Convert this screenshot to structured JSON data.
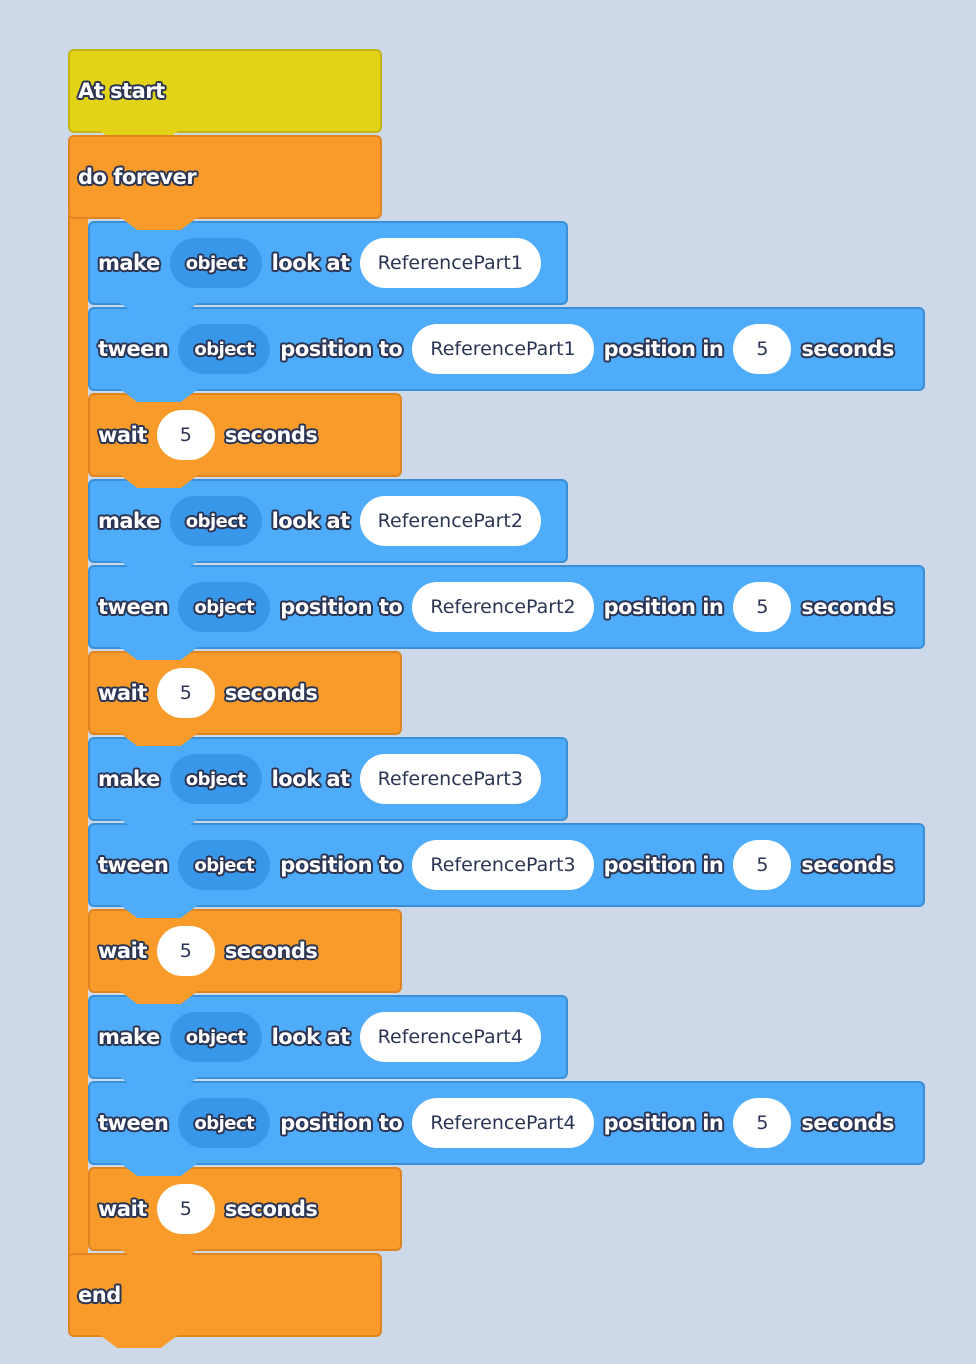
{
  "colors": {
    "background": "#cdd8e8",
    "event": "#e2d317",
    "control": "#f89b2a",
    "action": "#4eacfb",
    "variable": "#3897e8"
  },
  "start_block": {
    "label": "At start"
  },
  "loop_block": {
    "label": "do forever"
  },
  "end_block": {
    "label": "end"
  },
  "blocks": [
    {
      "type": "make",
      "parts": [
        {
          "kind": "label",
          "text": "make"
        },
        {
          "kind": "var",
          "text": "object"
        },
        {
          "kind": "label",
          "text": "look at"
        },
        {
          "kind": "val",
          "text": "ReferencePart1"
        }
      ]
    },
    {
      "type": "tween",
      "parts": [
        {
          "kind": "label",
          "text": "tween"
        },
        {
          "kind": "var",
          "text": "object"
        },
        {
          "kind": "label",
          "text": "position to"
        },
        {
          "kind": "val",
          "text": "ReferencePart1"
        },
        {
          "kind": "label",
          "text": "position in"
        },
        {
          "kind": "val",
          "text": "5"
        },
        {
          "kind": "label",
          "text": "seconds"
        }
      ]
    },
    {
      "type": "wait",
      "parts": [
        {
          "kind": "label",
          "text": "wait"
        },
        {
          "kind": "val",
          "text": "5"
        },
        {
          "kind": "label",
          "text": "seconds"
        }
      ]
    },
    {
      "type": "make",
      "parts": [
        {
          "kind": "label",
          "text": "make"
        },
        {
          "kind": "var",
          "text": "object"
        },
        {
          "kind": "label",
          "text": "look at"
        },
        {
          "kind": "val",
          "text": "ReferencePart2"
        }
      ]
    },
    {
      "type": "tween",
      "parts": [
        {
          "kind": "label",
          "text": "tween"
        },
        {
          "kind": "var",
          "text": "object"
        },
        {
          "kind": "label",
          "text": "position to"
        },
        {
          "kind": "val",
          "text": "ReferencePart2"
        },
        {
          "kind": "label",
          "text": "position in"
        },
        {
          "kind": "val",
          "text": "5"
        },
        {
          "kind": "label",
          "text": "seconds"
        }
      ]
    },
    {
      "type": "wait",
      "parts": [
        {
          "kind": "label",
          "text": "wait"
        },
        {
          "kind": "val",
          "text": "5"
        },
        {
          "kind": "label",
          "text": "seconds"
        }
      ]
    },
    {
      "type": "make",
      "parts": [
        {
          "kind": "label",
          "text": "make"
        },
        {
          "kind": "var",
          "text": "object"
        },
        {
          "kind": "label",
          "text": "look at"
        },
        {
          "kind": "val",
          "text": "ReferencePart3"
        }
      ]
    },
    {
      "type": "tween",
      "parts": [
        {
          "kind": "label",
          "text": "tween"
        },
        {
          "kind": "var",
          "text": "object"
        },
        {
          "kind": "label",
          "text": "position to"
        },
        {
          "kind": "val",
          "text": "ReferencePart3"
        },
        {
          "kind": "label",
          "text": "position in"
        },
        {
          "kind": "val",
          "text": "5"
        },
        {
          "kind": "label",
          "text": "seconds"
        }
      ]
    },
    {
      "type": "wait",
      "parts": [
        {
          "kind": "label",
          "text": "wait"
        },
        {
          "kind": "val",
          "text": "5"
        },
        {
          "kind": "label",
          "text": "seconds"
        }
      ]
    },
    {
      "type": "make",
      "parts": [
        {
          "kind": "label",
          "text": "make"
        },
        {
          "kind": "var",
          "text": "object"
        },
        {
          "kind": "label",
          "text": "look at"
        },
        {
          "kind": "val",
          "text": "ReferencePart4"
        }
      ]
    },
    {
      "type": "tween",
      "parts": [
        {
          "kind": "label",
          "text": "tween"
        },
        {
          "kind": "var",
          "text": "object"
        },
        {
          "kind": "label",
          "text": "position to"
        },
        {
          "kind": "val",
          "text": "ReferencePart4"
        },
        {
          "kind": "label",
          "text": "position in"
        },
        {
          "kind": "val",
          "text": "5"
        },
        {
          "kind": "label",
          "text": "seconds"
        }
      ]
    },
    {
      "type": "wait",
      "parts": [
        {
          "kind": "label",
          "text": "wait"
        },
        {
          "kind": "val",
          "text": "5"
        },
        {
          "kind": "label",
          "text": "seconds"
        }
      ]
    }
  ]
}
